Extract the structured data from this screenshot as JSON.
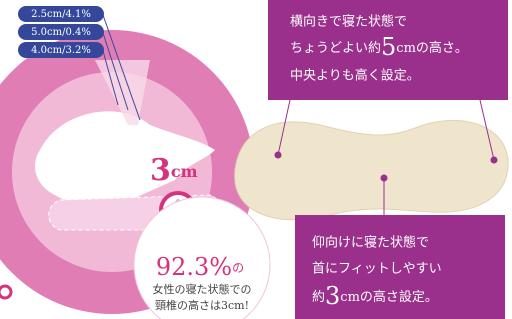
{
  "labels": [
    "2.5cm/4.1%",
    "5.0cm/0.4%",
    "4.0cm/3.2%"
  ],
  "measure": {
    "number": "3",
    "unit": "cm"
  },
  "stat": {
    "percent": "92.3%",
    "particle": "の",
    "lines": [
      "女性の寝た状態での",
      "頸椎の高さは3cm!"
    ]
  },
  "side_note": {
    "line1": "横向きで寝た状態で",
    "line2_pre": "ちょうどよい約",
    "line2_number": "5",
    "line2_post": "cmの高さ。",
    "line3": "中央よりも高く設定。"
  },
  "back_note": {
    "line1": "仰向けに寝た状態で",
    "line2": "首にフィットしやすい",
    "line3_pre": "約",
    "line3_number": "3",
    "line3_post": "cmの高さ設定。"
  }
}
